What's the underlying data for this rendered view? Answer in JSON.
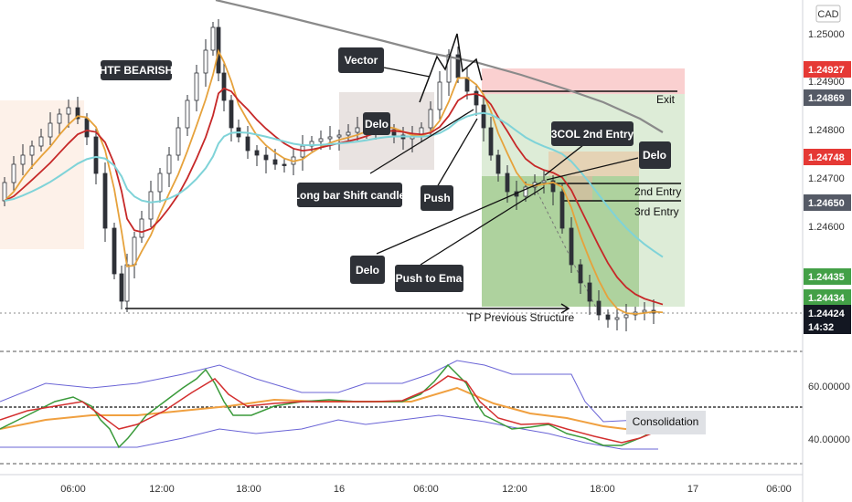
{
  "chart_data": {
    "type": "candlestick",
    "currency": "CAD",
    "price_axis": {
      "ticks": [
        "1.25000",
        "1.24900",
        "1.24800",
        "1.24700",
        "1.24600"
      ],
      "badges": [
        {
          "value": "1.24927",
          "color": "#e53935"
        },
        {
          "value": "1.24869",
          "color": "#555a66"
        },
        {
          "value": "1.24748",
          "color": "#e53935"
        },
        {
          "value": "1.24650",
          "color": "#555a66"
        },
        {
          "value": "1.24435",
          "color": "#43a047"
        },
        {
          "value": "1.24434",
          "color": "#43a047"
        },
        {
          "value": "1.24424",
          "color": "#131722"
        }
      ],
      "countdown": "14:32"
    },
    "osc_axis": {
      "ticks": [
        "60.00000",
        "40.00000"
      ]
    },
    "time_axis": [
      "06:00",
      "12:00",
      "18:00",
      "16",
      "06:00",
      "12:00",
      "18:00",
      "17",
      "06:00"
    ],
    "annotations": {
      "htf": "HTF BEARISH",
      "vector": "Vector",
      "delo_left": "Delo",
      "long_bar": "Long bar Shift candle",
      "push": "Push",
      "delo_bottom": "Delo",
      "push_to_ema": "Push to Ema",
      "col_entry": "3COL 2nd Entry",
      "delo_right": "Delo",
      "exit": "Exit",
      "entry2": "2nd Entry",
      "entry3": "3rd Entry",
      "tp": "TP Previous Structure",
      "consolidation": "Consolidation"
    },
    "series": [
      {
        "name": "",
        "color": "#e6a23c"
      },
      {
        "name": "",
        "color": "#c62828"
      },
      {
        "name": "",
        "color": "#7fd3d8"
      },
      {
        "name": "",
        "color": "#8a8a8a"
      }
    ],
    "levels": {
      "exit": 1.24869,
      "entry2": 1.24685,
      "entry3": 1.2465,
      "tp": 1.24424
    }
  }
}
